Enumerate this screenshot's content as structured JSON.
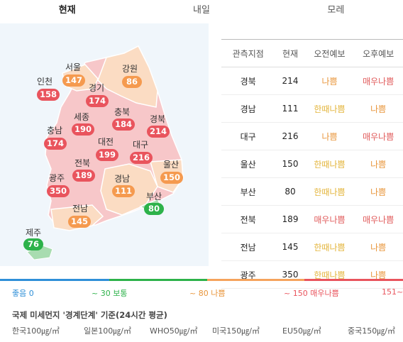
{
  "tabs": [
    {
      "label": "현재",
      "active": true
    },
    {
      "label": "내일",
      "active": false
    },
    {
      "label": "모레",
      "active": false
    }
  ],
  "map": {
    "regions": [
      {
        "name": "서울",
        "value": "147",
        "level": "bad"
      },
      {
        "name": "강원",
        "value": "86",
        "level": "bad"
      },
      {
        "name": "인천",
        "value": "158",
        "level": "vbad"
      },
      {
        "name": "경기",
        "value": "174",
        "level": "vbad"
      },
      {
        "name": "세종",
        "value": "190",
        "level": "vbad"
      },
      {
        "name": "충북",
        "value": "184",
        "level": "vbad"
      },
      {
        "name": "경북",
        "value": "214",
        "level": "vbad"
      },
      {
        "name": "충남",
        "value": "174",
        "level": "vbad"
      },
      {
        "name": "대전",
        "value": "199",
        "level": "vbad"
      },
      {
        "name": "대구",
        "value": "216",
        "level": "vbad"
      },
      {
        "name": "울산",
        "value": "150",
        "level": "bad"
      },
      {
        "name": "전북",
        "value": "189",
        "level": "vbad"
      },
      {
        "name": "경남",
        "value": "111",
        "level": "bad"
      },
      {
        "name": "광주",
        "value": "350",
        "level": "vbad"
      },
      {
        "name": "부산",
        "value": "80",
        "level": "ok"
      },
      {
        "name": "전남",
        "value": "145",
        "level": "bad"
      },
      {
        "name": "제주",
        "value": "76",
        "level": "ok"
      }
    ]
  },
  "table": {
    "headers": [
      "관측지점",
      "현재",
      "오전예보",
      "오후예보"
    ],
    "rows": [
      {
        "name": "경북",
        "value": "214",
        "am": "나쁨",
        "am_level": "bad",
        "pm": "매우나쁨",
        "pm_level": "vbad"
      },
      {
        "name": "경남",
        "value": "111",
        "am": "한때나쁨",
        "am_level": "half",
        "pm": "나쁨",
        "pm_level": "bad"
      },
      {
        "name": "대구",
        "value": "216",
        "am": "나쁨",
        "am_level": "bad",
        "pm": "매우나쁨",
        "pm_level": "vbad"
      },
      {
        "name": "울산",
        "value": "150",
        "am": "한때나쁨",
        "am_level": "half",
        "pm": "나쁨",
        "pm_level": "bad"
      },
      {
        "name": "부산",
        "value": "80",
        "am": "한때나쁨",
        "am_level": "half",
        "pm": "나쁨",
        "pm_level": "bad"
      },
      {
        "name": "전북",
        "value": "189",
        "am": "매우나쁨",
        "am_level": "vbad",
        "pm": "매우나쁨",
        "pm_level": "vbad"
      },
      {
        "name": "전남",
        "value": "145",
        "am": "한때나쁨",
        "am_level": "half",
        "pm": "나쁨",
        "pm_level": "bad"
      },
      {
        "name": "광주",
        "value": "350",
        "am": "한때나쁨",
        "am_level": "half",
        "pm": "나쁨",
        "pm_level": "bad"
      }
    ]
  },
  "scale": {
    "good_label": "좋음 0",
    "normal_label": "~ 30 보통",
    "bad_label": "~ 80 나쁨",
    "vbad_label": "~ 150 매우나쁨",
    "max_label": "151~",
    "colors": {
      "good": "#2f8fd8",
      "normal": "#2db24a",
      "bad": "#f5a35c",
      "vbad": "#e9545d"
    }
  },
  "standards": {
    "title": "국제 미세먼지 '경계단계' 기준(24시간 평균)",
    "items": [
      "한국100㎍/㎥",
      "일본100㎍/㎥",
      "WHO50㎍/㎥",
      "미국150㎍/㎥",
      "EU50㎍/㎥",
      "중국150㎍/㎥"
    ]
  },
  "colors": {
    "map_bg": "#f0f6fb",
    "very_bad": "#e9545d",
    "bad": "#f59a4f",
    "good": "#2db24a"
  }
}
